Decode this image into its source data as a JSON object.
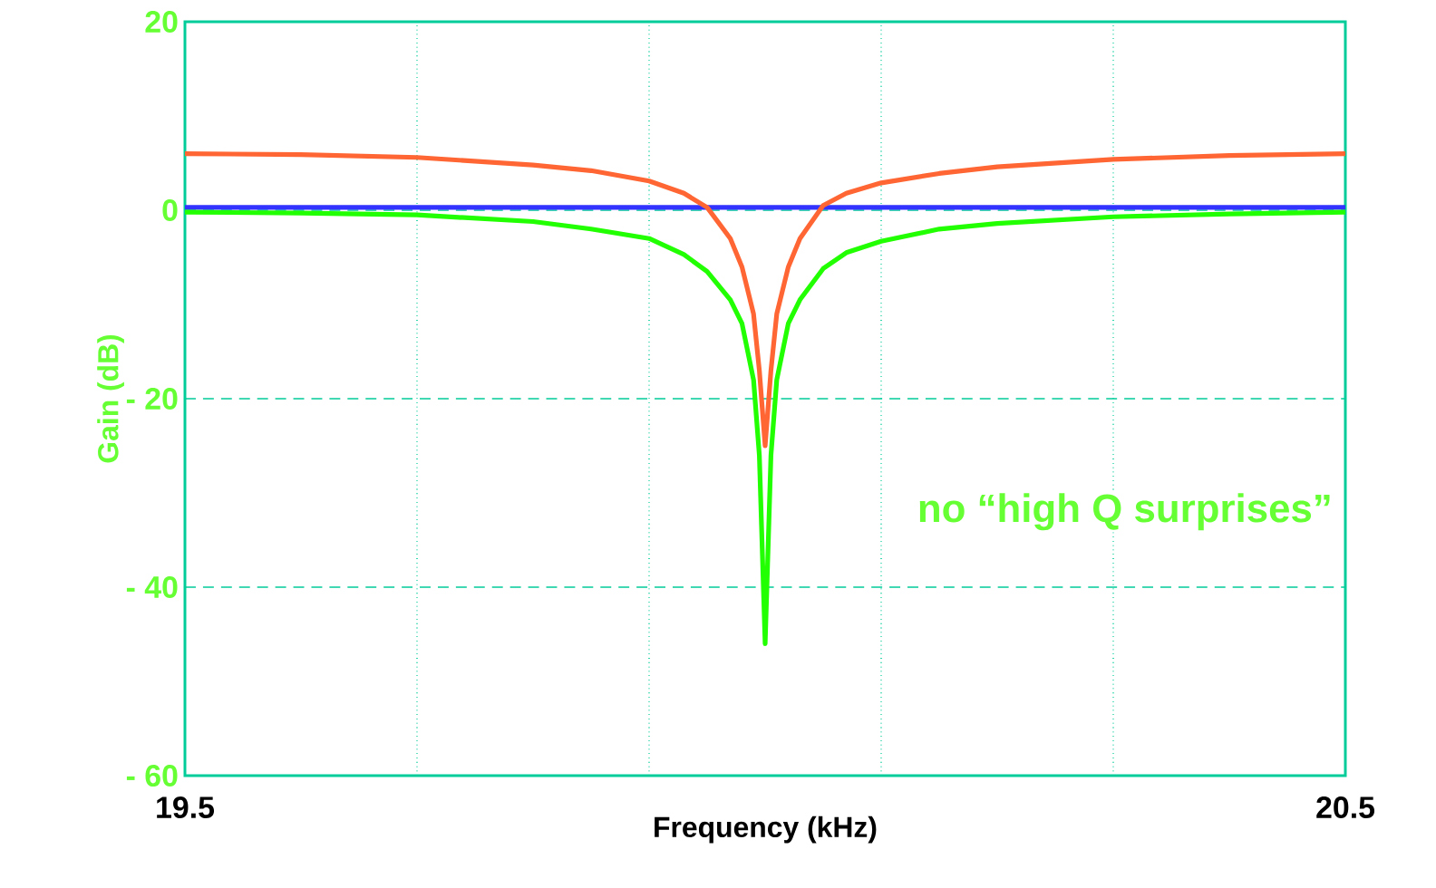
{
  "chart_data": {
    "type": "line",
    "xlabel": "Frequency (kHz)",
    "ylabel": "Gain (dB)",
    "xlim": [
      19.5,
      20.5
    ],
    "ylim": [
      -60,
      20
    ],
    "xticks": [
      19.5,
      {
        "value": 19.7,
        "label": null
      },
      {
        "value": 19.9,
        "label": null
      },
      {
        "value": 20.1,
        "label": null
      },
      {
        "value": 20.3,
        "label": null
      },
      20.5
    ],
    "yticks": [
      {
        "value": -60,
        "label": "- 60"
      },
      {
        "value": -40,
        "label": "- 40"
      },
      {
        "value": -20,
        "label": "- 20"
      },
      0,
      20
    ],
    "grid": true,
    "annotations": [
      "no “high Q surprises”"
    ],
    "series": [
      {
        "color": "#3333ff",
        "x": [
          19.5,
          20.5
        ],
        "values": [
          0.3,
          0.3
        ]
      },
      {
        "color": "#ff6633",
        "x": [
          19.5,
          19.6,
          19.7,
          19.8,
          19.85,
          19.9,
          19.93,
          19.95,
          19.97,
          19.98,
          19.99,
          19.995,
          20.0,
          20.005,
          20.01,
          20.02,
          20.03,
          20.05,
          20.07,
          20.1,
          20.15,
          20.2,
          20.3,
          20.4,
          20.5
        ],
        "values": [
          6,
          5.9,
          5.6,
          4.8,
          4.2,
          3.1,
          1.8,
          0.3,
          -3,
          -6,
          -11,
          -17,
          -25,
          -17,
          -11,
          -6,
          -3,
          0.5,
          1.8,
          2.9,
          3.9,
          4.6,
          5.4,
          5.8,
          6
        ]
      },
      {
        "color": "#22ff00",
        "x": [
          19.5,
          19.6,
          19.7,
          19.8,
          19.85,
          19.9,
          19.93,
          19.95,
          19.97,
          19.98,
          19.99,
          19.995,
          20.0,
          20.005,
          20.01,
          20.02,
          20.03,
          20.05,
          20.07,
          20.1,
          20.15,
          20.2,
          20.3,
          20.4,
          20.5
        ],
        "values": [
          -0.2,
          -0.3,
          -0.5,
          -1.2,
          -2,
          -3,
          -4.7,
          -6.5,
          -9.5,
          -12,
          -18,
          -26,
          -46,
          -26,
          -18,
          -12,
          -9.5,
          -6.2,
          -4.5,
          -3.3,
          -2,
          -1.4,
          -0.7,
          -0.4,
          -0.2
        ]
      }
    ]
  }
}
